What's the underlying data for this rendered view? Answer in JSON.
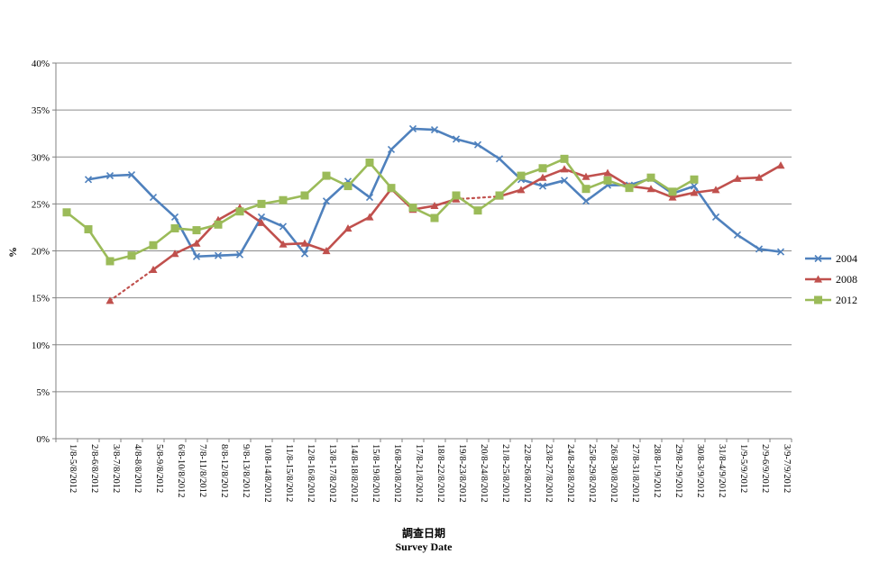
{
  "chart_data": {
    "type": "line",
    "title": "",
    "xlabel_zh": "調查日期",
    "xlabel_en": "Survey Date",
    "ylabel": "%",
    "ylim": [
      0,
      40
    ],
    "yticks": [
      "0%",
      "5%",
      "10%",
      "15%",
      "20%",
      "25%",
      "30%",
      "35%",
      "40%"
    ],
    "grid": true,
    "legend_position": "right",
    "categories": [
      "1/8-5/8/2012",
      "2/8-6/8/2012",
      "3/8-7/8/2012",
      "4/8-8/8/2012",
      "5/8-9/8/2012",
      "6/8-10/8/2012",
      "7/8-11/8/2012",
      "8/8-12/8/2012",
      "9/8-13/8/2012",
      "10/8-14/8/2012",
      "11/8-15/8/2012",
      "12/8-16/8/2012",
      "13/8-17/8/2012",
      "14/8-18/8/2012",
      "15/8-19/8/2012",
      "16/8-20/8/2012",
      "17/8-21/8/2012",
      "18/8-22/8/2012",
      "19/8-23/8/2012",
      "20/8-24/8/2012",
      "21/8-25/8/2012",
      "22/8-26/8/2012",
      "23/8-27/8/2012",
      "24/8-28/8/2012",
      "25/8-29/8/2012",
      "26/8-30/8/2012",
      "27/8-31/8/2012",
      "28/8-1/9/2012",
      "29/8-2/9/2012",
      "30/8-3/9/2012",
      "31/8-4/9/2012",
      "1/9-5/9/2012",
      "2/9-6/9/2012",
      "3/9-7/9/2012"
    ],
    "series": [
      {
        "name": "2004",
        "color": "#4f81bd",
        "marker": "x",
        "values": [
          null,
          27.6,
          28.0,
          28.1,
          25.7,
          23.6,
          19.4,
          19.5,
          19.6,
          23.6,
          22.6,
          19.7,
          25.3,
          27.4,
          25.7,
          30.8,
          33.0,
          32.9,
          31.9,
          31.3,
          29.8,
          27.6,
          26.9,
          27.5,
          25.3,
          27.0,
          27.0,
          27.7,
          26.1,
          26.9,
          23.6,
          21.7,
          20.2,
          19.9
        ]
      },
      {
        "name": "2008",
        "color": "#c0504d",
        "marker": "triangle",
        "values": [
          null,
          null,
          14.7,
          null,
          18.0,
          19.7,
          20.8,
          23.3,
          24.6,
          23.0,
          20.7,
          20.8,
          20.0,
          22.4,
          23.6,
          26.6,
          24.4,
          24.8,
          25.5,
          null,
          25.8,
          26.5,
          27.8,
          28.7,
          27.9,
          28.3,
          26.9,
          26.6,
          25.7,
          26.2,
          26.5,
          27.7,
          27.8,
          29.1
        ],
        "dotted_gaps": [
          [
            2,
            4
          ],
          [
            18,
            20
          ]
        ]
      },
      {
        "name": "2012",
        "color": "#9bbb59",
        "marker": "square",
        "values": [
          24.1,
          22.3,
          18.9,
          19.5,
          20.6,
          22.4,
          22.2,
          22.8,
          24.2,
          25.0,
          25.4,
          25.9,
          28.0,
          26.9,
          29.4,
          26.7,
          24.6,
          23.5,
          25.9,
          24.3,
          25.9,
          28.0,
          28.8,
          29.8,
          26.6,
          27.5,
          26.7,
          27.8,
          26.3,
          27.6,
          null,
          null,
          null,
          null
        ]
      }
    ]
  }
}
